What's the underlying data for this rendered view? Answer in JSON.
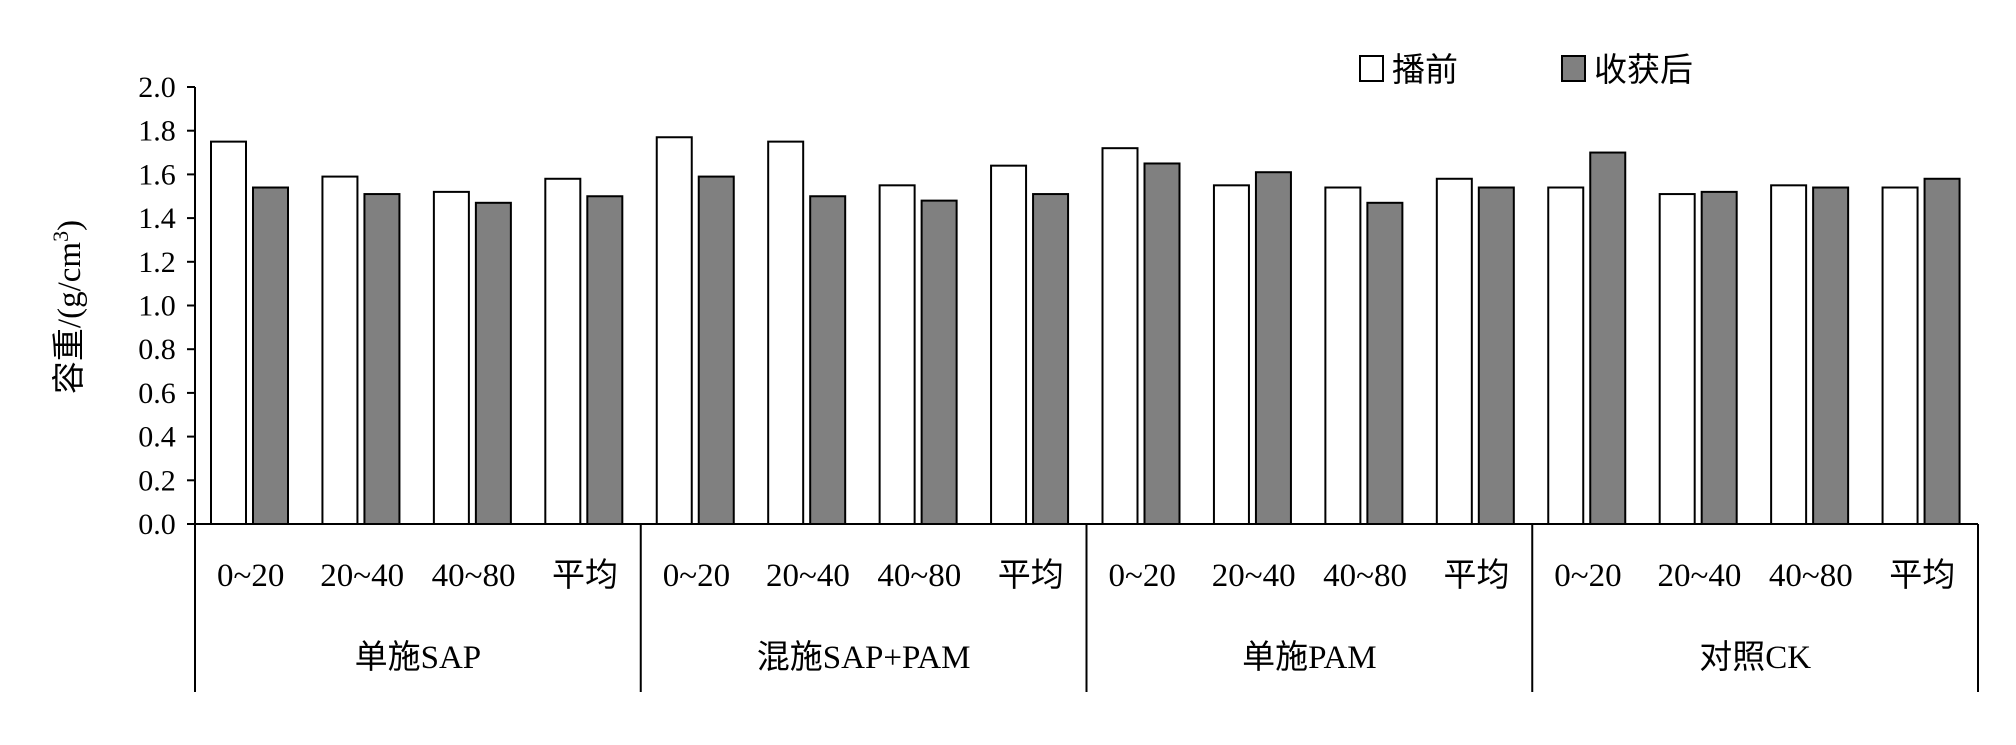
{
  "chart_data": {
    "type": "bar",
    "ylabel": "容重/(g/cm",
    "ylabel_sup": "3",
    "ylabel_close": ")",
    "ylim": [
      0,
      2.0
    ],
    "yticks": [
      "0.0",
      "0.2",
      "0.4",
      "0.6",
      "0.8",
      "1.0",
      "1.2",
      "1.4",
      "1.6",
      "1.8",
      "2.0"
    ],
    "grid": false,
    "legend_position": "top-right",
    "groups": [
      {
        "label": "单施SAP",
        "categories": [
          "0~20",
          "20~40",
          "40~80",
          "平均"
        ]
      },
      {
        "label": "混施SAP+PAM",
        "categories": [
          "0~20",
          "20~40",
          "40~80",
          "平均"
        ]
      },
      {
        "label": "单施PAM",
        "categories": [
          "0~20",
          "20~40",
          "40~80",
          "平均"
        ]
      },
      {
        "label": "对照CK",
        "categories": [
          "0~20",
          "20~40",
          "40~80",
          "平均"
        ]
      }
    ],
    "series": [
      {
        "name": "播前",
        "color": "#ffffff",
        "values": [
          1.75,
          1.59,
          1.52,
          1.58,
          1.77,
          1.75,
          1.55,
          1.64,
          1.72,
          1.55,
          1.54,
          1.58,
          1.54,
          1.51,
          1.55,
          1.54
        ]
      },
      {
        "name": "收获后",
        "color": "#808080",
        "values": [
          1.54,
          1.51,
          1.47,
          1.5,
          1.59,
          1.5,
          1.48,
          1.51,
          1.65,
          1.61,
          1.47,
          1.54,
          1.7,
          1.52,
          1.54,
          1.58
        ]
      }
    ]
  }
}
